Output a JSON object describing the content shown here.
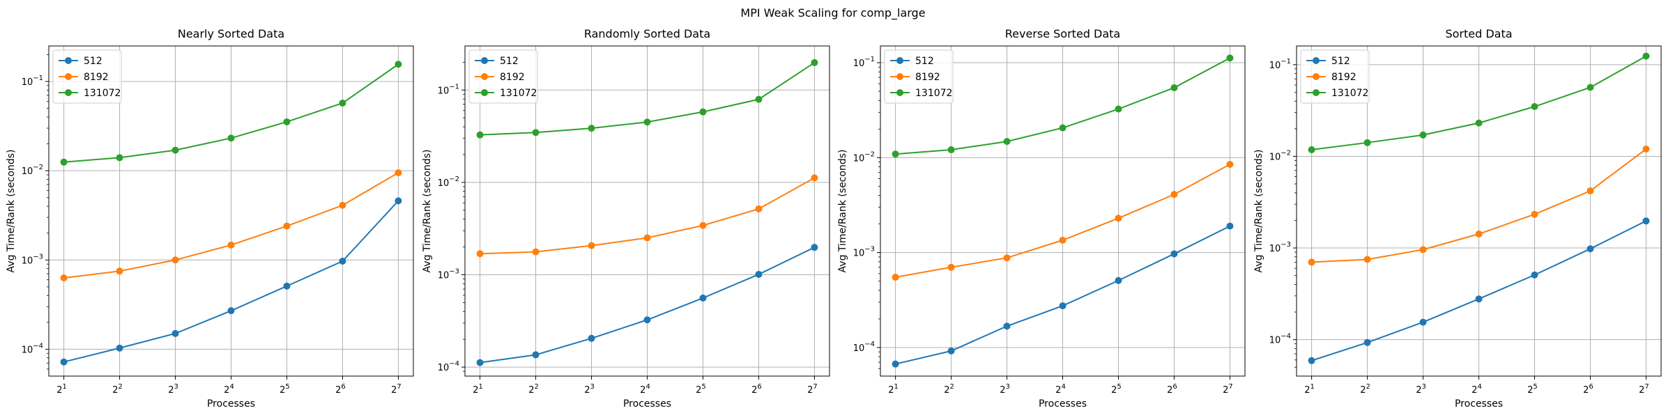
{
  "figure": {
    "title": "MPI Weak Scaling for comp_large"
  },
  "chart_data": [
    {
      "type": "line",
      "title": "Nearly Sorted Data",
      "xlabel": "Processes",
      "ylabel": "Avg Time/Rank (seconds)",
      "x": [
        2,
        4,
        8,
        16,
        32,
        64,
        128
      ],
      "x_tick_base": "2",
      "x_tick_exponents": [
        "1",
        "2",
        "3",
        "4",
        "5",
        "6",
        "7"
      ],
      "x_scale": "log2",
      "y_scale": "log10",
      "ylim": [
        5e-05,
        0.25
      ],
      "y_tick_base": "10",
      "y_tick_exponents": [
        "−4",
        "−3",
        "−2",
        "−1"
      ],
      "grid": true,
      "legend_position": "top-left",
      "series": [
        {
          "name": "512",
          "color": "#1f77b4",
          "values": [
            7.2e-05,
            0.000103,
            0.00015,
            0.00027,
            0.00051,
            0.00097,
            0.0046
          ]
        },
        {
          "name": "8192",
          "color": "#ff7f0e",
          "values": [
            0.00063,
            0.00075,
            0.001,
            0.00147,
            0.0024,
            0.0041,
            0.0095
          ]
        },
        {
          "name": "131072",
          "color": "#2ca02c",
          "values": [
            0.0125,
            0.014,
            0.017,
            0.0232,
            0.0353,
            0.0573,
            0.156
          ]
        }
      ]
    },
    {
      "type": "line",
      "title": "Randomly Sorted Data",
      "xlabel": "Processes",
      "ylabel": "Avg Time/Rank (seconds)",
      "x": [
        2,
        4,
        8,
        16,
        32,
        64,
        128
      ],
      "x_tick_base": "2",
      "x_tick_exponents": [
        "1",
        "2",
        "3",
        "4",
        "5",
        "6",
        "7"
      ],
      "x_scale": "log2",
      "y_scale": "log10",
      "ylim": [
        8e-05,
        0.3
      ],
      "y_tick_base": "10",
      "y_tick_exponents": [
        "−4",
        "−3",
        "−2",
        "−1"
      ],
      "grid": true,
      "legend_position": "top-left",
      "series": [
        {
          "name": "512",
          "color": "#1f77b4",
          "values": [
            0.000112,
            0.000136,
            0.000205,
            0.000325,
            0.00056,
            0.00101,
            0.00198
          ]
        },
        {
          "name": "8192",
          "color": "#ff7f0e",
          "values": [
            0.00169,
            0.00177,
            0.00207,
            0.00251,
            0.00342,
            0.00517,
            0.0112
          ]
        },
        {
          "name": "131072",
          "color": "#2ca02c",
          "values": [
            0.0327,
            0.0347,
            0.0386,
            0.045,
            0.058,
            0.0793,
            0.198
          ]
        }
      ]
    },
    {
      "type": "line",
      "title": "Reverse Sorted Data",
      "xlabel": "Processes",
      "ylabel": "Avg Time/Rank (seconds)",
      "x": [
        2,
        4,
        8,
        16,
        32,
        64,
        128
      ],
      "x_tick_base": "2",
      "x_tick_exponents": [
        "1",
        "2",
        "3",
        "4",
        "5",
        "6",
        "7"
      ],
      "x_scale": "log2",
      "y_scale": "log10",
      "ylim": [
        5e-05,
        0.15
      ],
      "y_tick_base": "10",
      "y_tick_exponents": [
        "−4",
        "−3",
        "−2",
        "−1"
      ],
      "grid": true,
      "legend_position": "top-left",
      "series": [
        {
          "name": "512",
          "color": "#1f77b4",
          "values": [
            6.7e-05,
            9.2e-05,
            0.000168,
            0.000275,
            0.000508,
            0.00097,
            0.0019
          ]
        },
        {
          "name": "8192",
          "color": "#ff7f0e",
          "values": [
            0.00055,
            0.0007,
            0.00088,
            0.00135,
            0.0023,
            0.0041,
            0.0085
          ]
        },
        {
          "name": "131072",
          "color": "#2ca02c",
          "values": [
            0.0109,
            0.0121,
            0.0148,
            0.0206,
            0.0325,
            0.0545,
            0.112
          ]
        }
      ]
    },
    {
      "type": "line",
      "title": "Sorted Data",
      "xlabel": "Processes",
      "ylabel": "Avg Time/Rank (seconds)",
      "x": [
        2,
        4,
        8,
        16,
        32,
        64,
        128
      ],
      "x_tick_base": "2",
      "x_tick_exponents": [
        "1",
        "2",
        "3",
        "4",
        "5",
        "6",
        "7"
      ],
      "x_scale": "log2",
      "y_scale": "log10",
      "ylim": [
        4e-05,
        0.16
      ],
      "y_tick_base": "10",
      "y_tick_exponents": [
        "−4",
        "−3",
        "−2",
        "−1"
      ],
      "grid": true,
      "legend_position": "top-left",
      "series": [
        {
          "name": "512",
          "color": "#1f77b4",
          "values": [
            5.9e-05,
            9.3e-05,
            0.000155,
            0.000278,
            0.000508,
            0.00098,
            0.00197
          ]
        },
        {
          "name": "8192",
          "color": "#ff7f0e",
          "values": [
            0.0007,
            0.00075,
            0.00096,
            0.00142,
            0.00233,
            0.0042,
            0.012
          ]
        },
        {
          "name": "131072",
          "color": "#2ca02c",
          "values": [
            0.0118,
            0.0141,
            0.0171,
            0.0231,
            0.0349,
            0.0565,
            0.124
          ]
        }
      ]
    }
  ]
}
